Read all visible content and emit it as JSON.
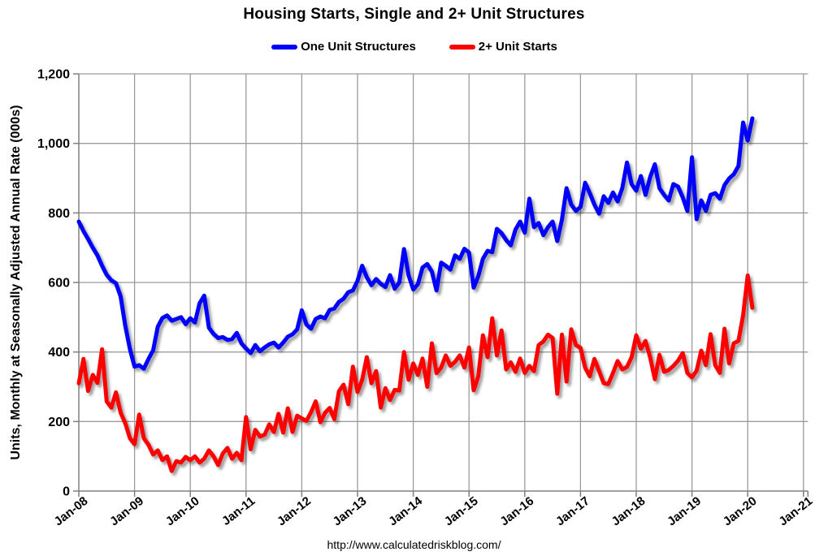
{
  "page": {
    "title": "Housing Starts, Single and 2+ Unit Structures"
  },
  "legend": {
    "items": [
      {
        "label": "One Unit Structures",
        "color": "#0000ff"
      },
      {
        "label": "2+ Unit Starts",
        "color": "#ff0000"
      }
    ]
  },
  "footer": {
    "url_text": "http://www.calculatedriskblog.com/"
  },
  "colors": {
    "background": "#ffffff",
    "grid": "#9b9b9b",
    "axis": "#808080",
    "text": "#000000",
    "series_one_unit": "#0000ff",
    "series_two_plus": "#ff0000"
  },
  "chart_data": {
    "type": "line",
    "title": "Housing Starts, Single and 2+ Unit Structures",
    "xlabel": "",
    "ylabel": "Units, Monthly at Seasonally Adjusted Annual Rate (000s)",
    "x_start": "Jan-2008",
    "x_frequency": "monthly",
    "x_total_months": 156,
    "x_tick_labels": [
      "Jan-08",
      "Jan-09",
      "Jan-10",
      "Jan-11",
      "Jan-12",
      "Jan-13",
      "Jan-14",
      "Jan-15",
      "Jan-16",
      "Jan-17",
      "Jan-18",
      "Jan-19",
      "Jan-20",
      "Jan-21"
    ],
    "y_ticks": [
      0,
      200,
      400,
      600,
      800,
      1000,
      1200
    ],
    "y_tick_labels": [
      "0",
      "200",
      "400",
      "600",
      "800",
      "1,000",
      "1,200"
    ],
    "ylim": [
      0,
      1200
    ],
    "grid": true,
    "legend_position": "top",
    "series": [
      {
        "name": "One Unit Structures",
        "color": "#0000ff",
        "values": [
          775,
          748,
          725,
          700,
          678,
          648,
          622,
          606,
          598,
          560,
          475,
          408,
          358,
          362,
          352,
          380,
          405,
          473,
          498,
          505,
          490,
          495,
          500,
          480,
          497,
          485,
          540,
          562,
          470,
          452,
          440,
          443,
          435,
          437,
          455,
          425,
          410,
          397,
          420,
          402,
          413,
          422,
          427,
          413,
          427,
          444,
          451,
          465,
          520,
          479,
          467,
          495,
          502,
          497,
          521,
          525,
          544,
          553,
          572,
          577,
          605,
          648,
          615,
          592,
          610,
          596,
          587,
          621,
          582,
          600,
          696,
          620,
          580,
          595,
          643,
          653,
          631,
          577,
          657,
          648,
          637,
          678,
          668,
          697,
          686,
          585,
          618,
          668,
          691,
          687,
          754,
          742,
          722,
          707,
          752,
          775,
          743,
          841,
          759,
          771,
          736,
          759,
          775,
          719,
          780,
          871,
          824,
          806,
          817,
          887,
          857,
          824,
          798,
          848,
          829,
          859,
          833,
          871,
          945,
          883,
          864,
          906,
          852,
          903,
          940,
          871,
          852,
          836,
          883,
          876,
          845,
          806,
          960,
          782,
          836,
          806,
          852,
          857,
          841,
          880,
          899,
          911,
          935,
          1060,
          1008,
          1072
        ]
      },
      {
        "name": "2+ Unit Starts",
        "color": "#ff0000",
        "values": [
          310,
          380,
          288,
          334,
          311,
          408,
          258,
          240,
          284,
          226,
          195,
          152,
          135,
          220,
          152,
          133,
          105,
          117,
          89,
          100,
          58,
          86,
          82,
          98,
          89,
          100,
          82,
          93,
          117,
          100,
          75,
          108,
          124,
          93,
          110,
          89,
          213,
          120,
          176,
          157,
          162,
          192,
          170,
          222,
          168,
          238,
          170,
          217,
          209,
          202,
          227,
          258,
          198,
          225,
          239,
          207,
          287,
          306,
          250,
          358,
          285,
          320,
          385,
          310,
          345,
          240,
          296,
          262,
          291,
          289,
          400,
          320,
          367,
          334,
          381,
          300,
          425,
          339,
          355,
          390,
          360,
          372,
          390,
          355,
          413,
          290,
          330,
          448,
          385,
          497,
          390,
          462,
          350,
          370,
          343,
          381,
          340,
          360,
          345,
          420,
          430,
          450,
          440,
          280,
          450,
          315,
          465,
          420,
          412,
          355,
          330,
          380,
          345,
          310,
          308,
          340,
          374,
          350,
          357,
          385,
          448,
          409,
          432,
          385,
          322,
          392,
          343,
          348,
          360,
          375,
          397,
          340,
          327,
          346,
          404,
          362,
          451,
          362,
          340,
          467,
          367,
          425,
          432,
          505,
          620,
          527
        ]
      }
    ]
  }
}
